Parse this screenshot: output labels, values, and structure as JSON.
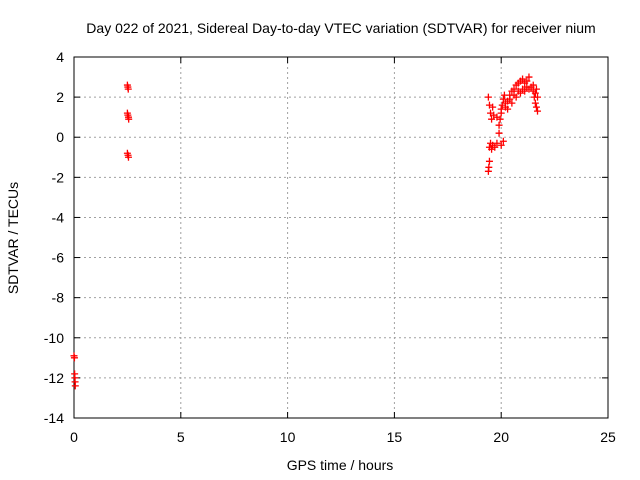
{
  "chart_data": {
    "type": "scatter",
    "title": "Day 022 of 2021, Sidereal Day-to-day VTEC variation (SDTVAR) for receiver nium",
    "xlabel": "GPS time / hours",
    "ylabel": "SDTVAR / TECUs",
    "xlim": [
      0,
      25
    ],
    "ylim": [
      -14,
      4
    ],
    "xticks": [
      0,
      5,
      10,
      15,
      20,
      25
    ],
    "yticks": [
      -14,
      -12,
      -10,
      -8,
      -6,
      -4,
      -2,
      0,
      2,
      4
    ],
    "xtick_labels": [
      "0",
      "5",
      "10",
      "15",
      "20",
      "25"
    ],
    "ytick_labels": [
      "-14",
      "-12",
      "-10",
      "-8",
      "-6",
      "-4",
      "-2",
      "0",
      "2",
      "4"
    ],
    "grid": true,
    "marker": "+",
    "series": [
      {
        "name": "SDTVAR",
        "color": "#ff0000",
        "points": [
          [
            0.0,
            -10.9
          ],
          [
            0.02,
            -11.0
          ],
          [
            0.03,
            -11.8
          ],
          [
            0.04,
            -12.0
          ],
          [
            0.05,
            -12.2
          ],
          [
            0.06,
            -12.4
          ],
          [
            2.5,
            2.6
          ],
          [
            2.52,
            2.5
          ],
          [
            2.54,
            2.4
          ],
          [
            2.5,
            1.2
          ],
          [
            2.52,
            1.1
          ],
          [
            2.55,
            1.0
          ],
          [
            2.56,
            0.9
          ],
          [
            2.5,
            -0.8
          ],
          [
            2.53,
            -0.9
          ],
          [
            2.55,
            -1.0
          ],
          [
            19.4,
            -1.7
          ],
          [
            19.42,
            -1.5
          ],
          [
            19.45,
            -1.2
          ],
          [
            19.45,
            -0.5
          ],
          [
            19.5,
            -0.3
          ],
          [
            19.55,
            -0.6
          ],
          [
            19.4,
            2.0
          ],
          [
            19.45,
            1.6
          ],
          [
            19.5,
            1.2
          ],
          [
            19.55,
            0.9
          ],
          [
            19.6,
            1.5
          ],
          [
            19.65,
            1.1
          ],
          [
            19.6,
            -0.4
          ],
          [
            19.7,
            -0.5
          ],
          [
            19.8,
            -0.3
          ],
          [
            19.9,
            0.2
          ],
          [
            20.0,
            -0.4
          ],
          [
            20.1,
            -0.2
          ],
          [
            19.9,
            0.6
          ],
          [
            19.95,
            0.9
          ],
          [
            20.0,
            1.2
          ],
          [
            20.05,
            1.6
          ],
          [
            20.1,
            1.9
          ],
          [
            20.15,
            2.1
          ],
          [
            20.2,
            1.5
          ],
          [
            20.3,
            1.8
          ],
          [
            20.4,
            2.1
          ],
          [
            20.5,
            2.3
          ],
          [
            20.6,
            2.4
          ],
          [
            20.7,
            2.6
          ],
          [
            20.8,
            2.7
          ],
          [
            20.9,
            2.8
          ],
          [
            21.0,
            2.9
          ],
          [
            21.1,
            2.7
          ],
          [
            21.2,
            2.8
          ],
          [
            21.3,
            3.0
          ],
          [
            20.3,
            1.4
          ],
          [
            20.5,
            1.7
          ],
          [
            20.7,
            2.0
          ],
          [
            20.9,
            2.2
          ],
          [
            21.1,
            2.3
          ],
          [
            21.3,
            2.4
          ],
          [
            21.4,
            2.5
          ],
          [
            21.5,
            2.3
          ],
          [
            21.55,
            2.0
          ],
          [
            21.6,
            1.7
          ],
          [
            21.65,
            1.5
          ],
          [
            21.7,
            1.3
          ],
          [
            21.5,
            2.6
          ],
          [
            21.6,
            2.2
          ],
          [
            21.7,
            2.0
          ],
          [
            21.65,
            2.4
          ],
          [
            21.2,
            2.5
          ],
          [
            21.0,
            2.4
          ],
          [
            20.8,
            2.3
          ],
          [
            20.6,
            2.1
          ],
          [
            20.4,
            1.9
          ],
          [
            20.2,
            1.7
          ],
          [
            20.0,
            1.4
          ],
          [
            19.8,
            1.0
          ]
        ]
      }
    ]
  }
}
